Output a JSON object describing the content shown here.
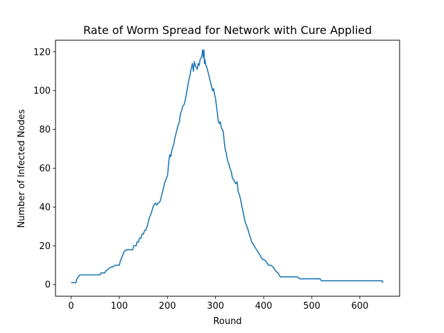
{
  "chart_data": {
    "type": "line",
    "title": "Rate of Worm Spread for Network with Cure Applied",
    "xlabel": "Round",
    "ylabel": "Number of Infected Nodes",
    "xlim": [
      -32.5,
      682.5
    ],
    "ylim": [
      -6,
      126
    ],
    "xticks": [
      0,
      100,
      200,
      300,
      400,
      500,
      600
    ],
    "yticks": [
      0,
      20,
      40,
      60,
      80,
      100,
      120
    ],
    "grid": false,
    "legend": "none",
    "series": [
      {
        "color": "#1f77b4",
        "x": [
          0,
          10,
          12,
          18,
          60,
          62,
          70,
          72,
          82,
          85,
          92,
          100,
          102,
          110,
          115,
          118,
          122,
          125,
          128,
          130,
          135,
          137,
          140,
          142,
          145,
          147,
          150,
          153,
          155,
          158,
          160,
          162,
          165,
          168,
          170,
          172,
          175,
          178,
          180,
          182,
          185,
          188,
          190,
          192,
          195,
          198,
          200,
          201,
          203,
          205,
          207,
          210,
          213,
          215,
          218,
          220,
          222,
          225,
          227,
          230,
          232,
          235,
          237,
          240,
          242,
          245,
          247,
          250,
          252,
          254,
          256,
          258,
          260,
          262,
          264,
          266,
          268,
          270,
          272,
          273,
          274,
          275,
          276,
          277,
          278,
          280,
          282,
          284,
          286,
          288,
          290,
          292,
          294,
          296,
          298,
          300,
          302,
          304,
          306,
          308,
          310,
          312,
          314,
          316,
          318,
          320,
          322,
          325,
          328,
          330,
          333,
          335,
          338,
          340,
          342,
          345,
          347,
          350,
          352,
          355,
          357,
          360,
          362,
          365,
          368,
          370,
          373,
          375,
          378,
          380,
          383,
          385,
          388,
          390,
          393,
          395,
          398,
          400,
          405,
          410,
          415,
          420,
          425,
          430,
          432,
          435,
          440,
          445,
          450,
          470,
          475,
          480,
          515,
          517,
          520,
          600,
          645,
          646,
          648
        ],
        "y": [
          1,
          1,
          3,
          5,
          5,
          6,
          6,
          7,
          9,
          9,
          10,
          10,
          12,
          17,
          18,
          18,
          18,
          18,
          18,
          20,
          20,
          22,
          22,
          24,
          24,
          26,
          26,
          28,
          28,
          30,
          32,
          34,
          36,
          38,
          40,
          41,
          42,
          41,
          42,
          42,
          43,
          46,
          48,
          50,
          53,
          55,
          56,
          58,
          64,
          67,
          66,
          70,
          72,
          75,
          78,
          80,
          82,
          84,
          88,
          90,
          92,
          93,
          95,
          99,
          102,
          106,
          108,
          112,
          114,
          110,
          115,
          113,
          112,
          111,
          114,
          113,
          116,
          117,
          118,
          121,
          119,
          117,
          121,
          114,
          116,
          113,
          112,
          110,
          108,
          106,
          104,
          102,
          100,
          101,
          98,
          96,
          92,
          88,
          84,
          83,
          84,
          81,
          80,
          79,
          74,
          70,
          68,
          64,
          62,
          60,
          58,
          55,
          54,
          53,
          52,
          53,
          48,
          46,
          44,
          40,
          38,
          34,
          32,
          30,
          28,
          26,
          24,
          22,
          21,
          20,
          19,
          18,
          17,
          16,
          15,
          14,
          13,
          13,
          12,
          10,
          10,
          9,
          7,
          6,
          5,
          4,
          4,
          4,
          4,
          4,
          3,
          3,
          3,
          3,
          2,
          2,
          2,
          2,
          1
        ]
      }
    ]
  }
}
